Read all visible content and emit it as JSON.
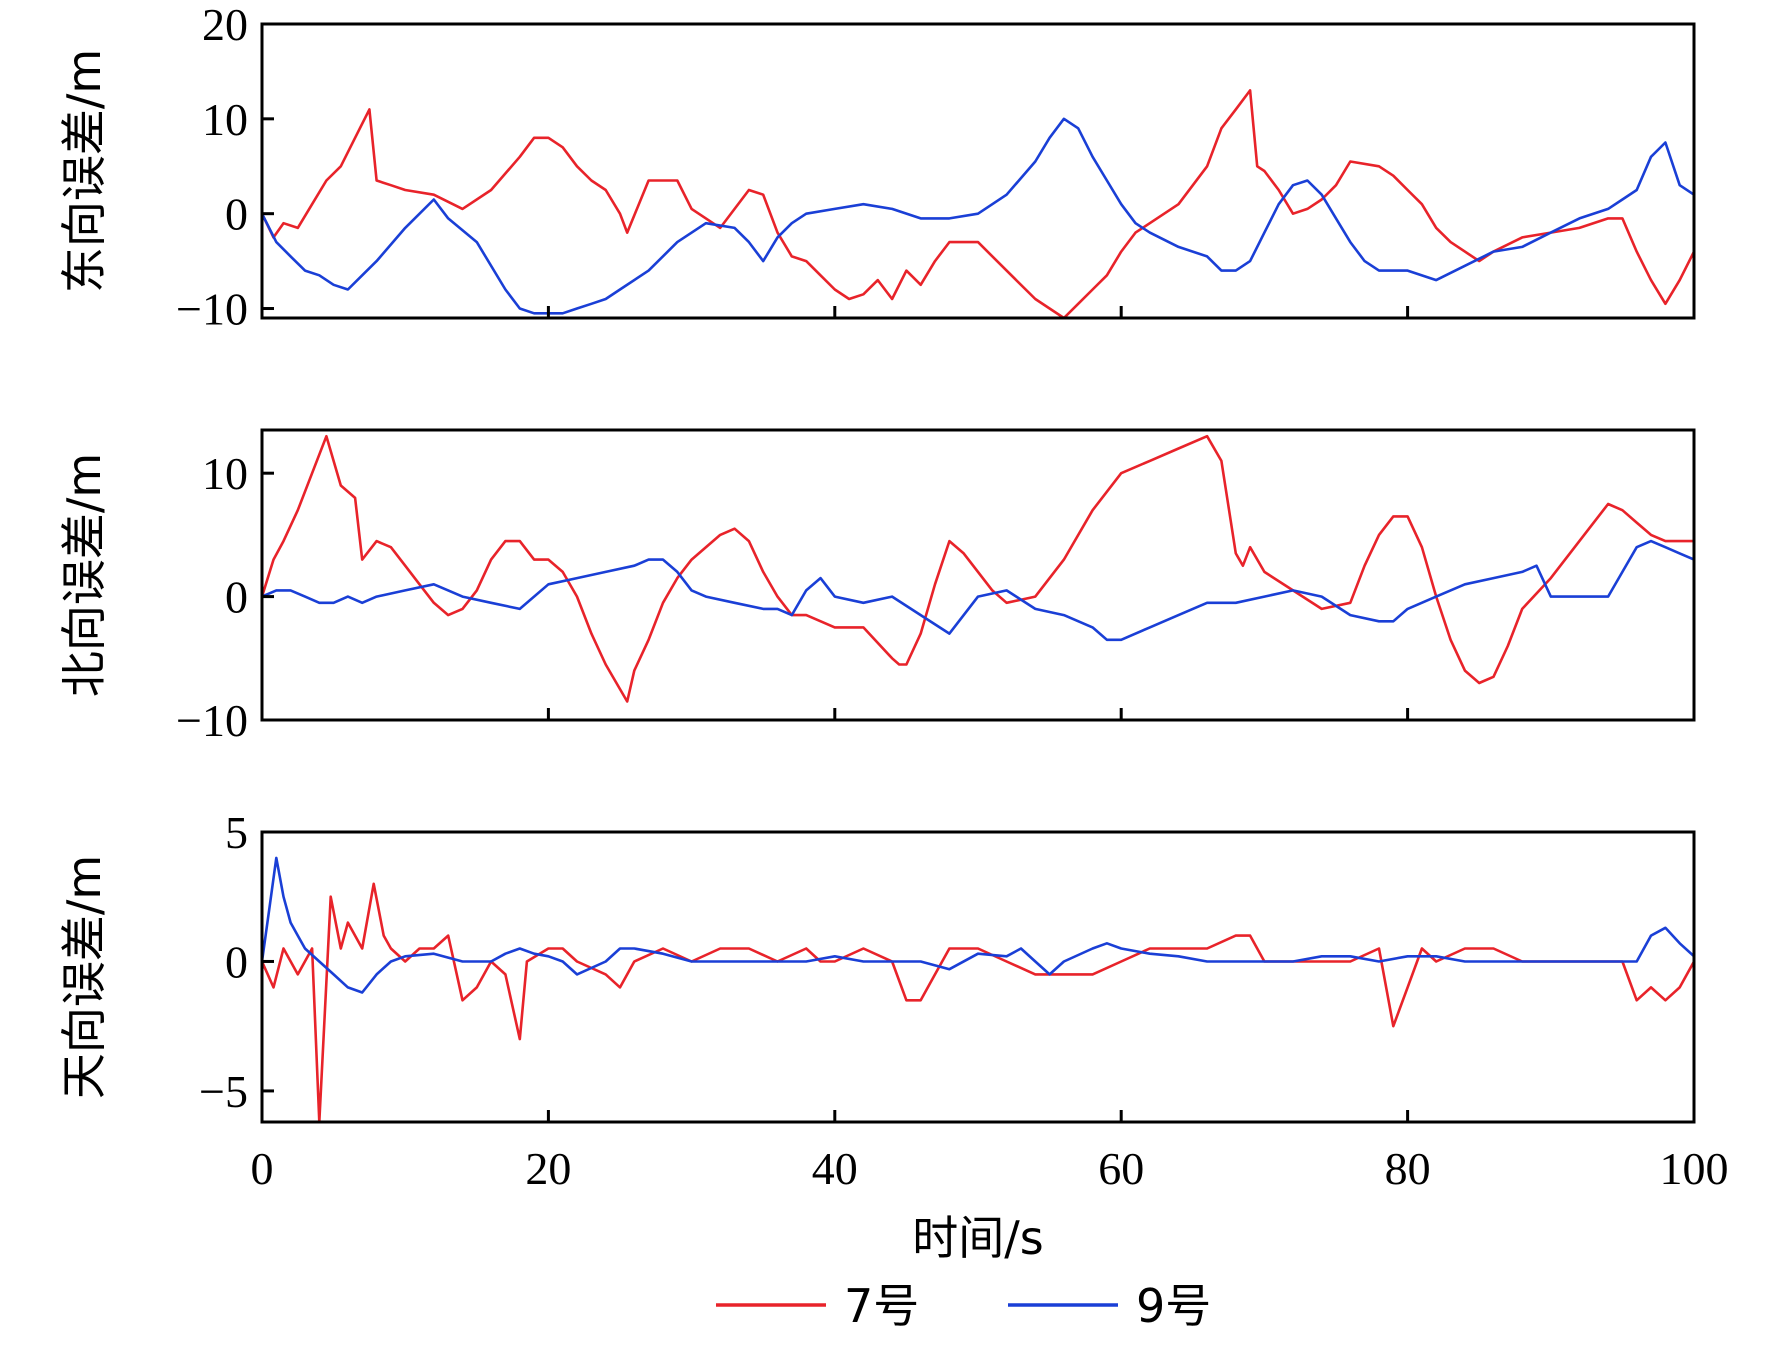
{
  "chart_data": {
    "type": "line",
    "xlabel": "时间/s",
    "xlim": [
      0,
      100
    ],
    "xticks": [
      0,
      20,
      40,
      60,
      80,
      100
    ],
    "legend": {
      "position": "bottom-center",
      "entries": [
        {
          "name": "7号",
          "color": "#e8232a"
        },
        {
          "name": "9号",
          "color": "#1a3fd6"
        }
      ]
    },
    "panels": [
      {
        "ylabel": "东向误差/m",
        "ylim": [
          -11,
          20
        ],
        "yticks": [
          -10,
          0,
          10,
          20
        ],
        "series": [
          {
            "name": "7号",
            "color": "#e8232a",
            "x": [
              0,
              0.8,
              1.5,
              2.5,
              3.5,
              4.5,
              5.5,
              6.5,
              7.5,
              8,
              9,
              10,
              12,
              14,
              16,
              18,
              19,
              20,
              21,
              22,
              23,
              24,
              25,
              25.5,
              27,
              29,
              30,
              32,
              34,
              35,
              36,
              37,
              38,
              39,
              40,
              41,
              42,
              43,
              44,
              45,
              46,
              47,
              48,
              50,
              52,
              54,
              55,
              56,
              57,
              58,
              59,
              60,
              61,
              62,
              64,
              66,
              67,
              68,
              69,
              69.5,
              70,
              71,
              72,
              73,
              74,
              75,
              76,
              78,
              79,
              80,
              81,
              82,
              83,
              84,
              85,
              86,
              88,
              90,
              92,
              94,
              95,
              96,
              97,
              98,
              99,
              100
            ],
            "y": [
              0,
              -2.5,
              -1,
              -1.5,
              1,
              3.5,
              5,
              8,
              11,
              3.5,
              3,
              2.5,
              2,
              0.5,
              2.5,
              6,
              8,
              8,
              7,
              5,
              3.5,
              2.5,
              0,
              -2,
              3.5,
              3.5,
              0.5,
              -1.5,
              2.5,
              2,
              -2,
              -4.5,
              -5,
              -6.5,
              -8,
              -9,
              -8.5,
              -7,
              -9,
              -6,
              -7.5,
              -5,
              -3,
              -3,
              -6,
              -9,
              -10,
              -11,
              -9.5,
              -8,
              -6.5,
              -4,
              -2,
              -1,
              1,
              5,
              9,
              11,
              13,
              5,
              4.5,
              2.5,
              0,
              0.5,
              1.5,
              3,
              5.5,
              5,
              4,
              2.5,
              1,
              -1.5,
              -3,
              -4,
              -5,
              -4,
              -2.5,
              -2,
              -1.5,
              -0.5,
              -0.5,
              -4,
              -7,
              -9.5,
              -7,
              -4
            ]
          },
          {
            "name": "9号",
            "color": "#1a3fd6",
            "x": [
              0,
              1,
              2,
              3,
              4,
              5,
              6,
              7,
              8,
              10,
              12,
              13,
              15,
              17,
              18,
              19,
              20,
              21,
              22,
              23,
              24,
              25,
              27,
              29,
              31,
              33,
              34,
              35,
              36,
              37,
              38,
              40,
              42,
              44,
              46,
              48,
              50,
              52,
              54,
              55,
              56,
              57,
              58,
              59,
              60,
              61,
              62,
              64,
              66,
              67,
              68,
              69,
              70,
              71,
              72,
              73,
              74,
              75,
              76,
              77,
              78,
              80,
              82,
              84,
              86,
              88,
              90,
              92,
              94,
              95,
              96,
              97,
              98,
              99,
              100
            ],
            "y": [
              0,
              -3,
              -4.5,
              -6,
              -6.5,
              -7.5,
              -8,
              -6.5,
              -5,
              -1.5,
              1.5,
              -0.5,
              -3,
              -8,
              -10,
              -10.5,
              -10.5,
              -10.5,
              -10,
              -9.5,
              -9,
              -8,
              -6,
              -3,
              -1,
              -1.5,
              -3,
              -5,
              -2.5,
              -1,
              0,
              0.5,
              1,
              0.5,
              -0.5,
              -0.5,
              0,
              2,
              5.5,
              8,
              10,
              9,
              6,
              3.5,
              1,
              -1,
              -2,
              -3.5,
              -4.5,
              -6,
              -6,
              -5,
              -2,
              1,
              3,
              3.5,
              2,
              -0.5,
              -3,
              -5,
              -6,
              -6,
              -7,
              -5.5,
              -4,
              -3.5,
              -2,
              -0.5,
              0.5,
              1.5,
              2.5,
              6,
              7.5,
              3,
              2
            ]
          }
        ]
      },
      {
        "ylabel": "北向误差/m",
        "ylim": [
          -10,
          13.5
        ],
        "yticks": [
          -10,
          0,
          10
        ],
        "series": [
          {
            "name": "7号",
            "color": "#e8232a",
            "x": [
              0,
              0.8,
              1.5,
              2.5,
              3.5,
              4.5,
              5.5,
              6.5,
              7,
              8,
              9,
              10,
              11,
              12,
              13,
              14,
              15,
              16,
              17,
              18,
              19,
              20,
              21,
              22,
              23,
              24,
              25,
              25.5,
              26,
              27,
              28,
              29,
              30,
              32,
              33,
              34,
              35,
              36,
              37,
              38,
              40,
              42,
              44,
              44.5,
              45,
              46,
              47,
              48,
              49,
              50,
              51,
              52,
              54,
              56,
              58,
              60,
              62,
              64,
              66,
              67,
              68,
              68.5,
              69,
              70,
              72,
              74,
              76,
              77,
              78,
              79,
              80,
              81,
              82,
              83,
              84,
              85,
              86,
              87,
              88,
              90,
              92,
              94,
              95,
              96,
              97,
              98,
              99,
              100
            ],
            "y": [
              0,
              3,
              4.5,
              7,
              10,
              13,
              9,
              8,
              3,
              4.5,
              4,
              2.5,
              1,
              -0.5,
              -1.5,
              -1,
              0.5,
              3,
              4.5,
              4.5,
              3,
              3,
              2,
              0,
              -3,
              -5.5,
              -7.5,
              -8.5,
              -6,
              -3.5,
              -0.5,
              1.5,
              3,
              5,
              5.5,
              4.5,
              2,
              0,
              -1.5,
              -1.5,
              -2.5,
              -2.5,
              -5,
              -5.5,
              -5.5,
              -3,
              1,
              4.5,
              3.5,
              2,
              0.5,
              -0.5,
              0,
              3,
              7,
              10,
              11,
              12,
              13,
              11,
              3.5,
              2.5,
              4,
              2,
              0.5,
              -1,
              -0.5,
              2.5,
              5,
              6.5,
              6.5,
              4,
              0,
              -3.5,
              -6,
              -7,
              -6.5,
              -4,
              -1,
              1.5,
              4.5,
              7.5,
              7,
              6,
              5,
              4.5,
              4.5,
              4.5
            ]
          },
          {
            "name": "9号",
            "color": "#1a3fd6",
            "x": [
              0,
              1,
              2,
              3,
              4,
              5,
              6,
              7,
              8,
              10,
              12,
              13,
              14,
              16,
              18,
              20,
              22,
              24,
              26,
              27,
              28,
              29,
              30,
              31,
              33,
              35,
              36,
              37,
              38,
              39,
              40,
              42,
              44,
              46,
              48,
              50,
              52,
              54,
              56,
              58,
              59,
              60,
              62,
              64,
              66,
              68,
              70,
              72,
              74,
              76,
              78,
              79,
              80,
              82,
              84,
              86,
              88,
              89,
              90,
              92,
              94,
              95,
              96,
              97,
              98,
              99,
              100
            ],
            "y": [
              0,
              0.5,
              0.5,
              0,
              -0.5,
              -0.5,
              0,
              -0.5,
              0,
              0.5,
              1,
              0.5,
              0,
              -0.5,
              -1,
              1,
              1.5,
              2,
              2.5,
              3,
              3,
              2,
              0.5,
              0,
              -0.5,
              -1,
              -1,
              -1.5,
              0.5,
              1.5,
              0,
              -0.5,
              0,
              -1.5,
              -3,
              0,
              0.5,
              -1,
              -1.5,
              -2.5,
              -3.5,
              -3.5,
              -2.5,
              -1.5,
              -0.5,
              -0.5,
              0,
              0.5,
              0,
              -1.5,
              -2,
              -2,
              -1,
              0,
              1,
              1.5,
              2,
              2.5,
              0,
              0,
              0,
              2,
              4,
              4.5,
              4,
              3.5,
              3
            ]
          }
        ]
      },
      {
        "ylabel": "天向误差/m",
        "ylim": [
          -6.2,
          5
        ],
        "yticks": [
          -5,
          0,
          5
        ],
        "series": [
          {
            "name": "7号",
            "color": "#e8232a",
            "x": [
              0,
              0.8,
              1.5,
              2.5,
              3.5,
              4,
              4.8,
              5.5,
              6,
              7,
              7.8,
              8.5,
              9,
              10,
              11,
              12,
              13,
              14,
              15,
              16,
              17,
              18,
              18.5,
              20,
              21,
              22,
              24,
              25,
              26,
              28,
              30,
              32,
              34,
              36,
              38,
              39,
              40,
              42,
              44,
              45,
              46,
              47,
              48,
              49,
              50,
              52,
              54,
              56,
              58,
              60,
              62,
              64,
              66,
              68,
              69,
              70,
              72,
              74,
              76,
              78,
              79,
              80,
              81,
              82,
              84,
              86,
              88,
              90,
              92,
              94,
              95,
              96,
              97,
              98,
              99,
              100
            ],
            "y": [
              0,
              -1,
              0.5,
              -0.5,
              0.5,
              -6.2,
              2.5,
              0.5,
              1.5,
              0.5,
              3,
              1,
              0.5,
              0,
              0.5,
              0.5,
              1,
              -1.5,
              -1,
              0,
              -0.5,
              -3,
              0,
              0.5,
              0.5,
              0,
              -0.5,
              -1,
              0,
              0.5,
              0,
              0.5,
              0.5,
              0,
              0.5,
              0,
              0,
              0.5,
              0,
              -1.5,
              -1.5,
              -0.5,
              0.5,
              0.5,
              0.5,
              0,
              -0.5,
              -0.5,
              -0.5,
              0,
              0.5,
              0.5,
              0.5,
              1,
              1,
              0,
              0,
              0,
              0,
              0.5,
              -2.5,
              -1,
              0.5,
              0,
              0.5,
              0.5,
              0,
              0,
              0,
              0,
              0,
              -1.5,
              -1,
              -1.5,
              -1,
              0
            ]
          },
          {
            "name": "9号",
            "color": "#1a3fd6",
            "x": [
              0,
              0.5,
              1,
              1.5,
              2,
              2.5,
              3,
              4,
              5,
              6,
              7,
              8,
              9,
              10,
              12,
              14,
              16,
              17,
              18,
              19,
              20,
              21,
              22,
              24,
              25,
              26,
              28,
              30,
              32,
              34,
              36,
              38,
              40,
              42,
              44,
              46,
              48,
              50,
              52,
              53,
              54,
              55,
              56,
              58,
              59,
              60,
              62,
              64,
              66,
              68,
              70,
              72,
              74,
              76,
              78,
              80,
              82,
              84,
              86,
              88,
              90,
              92,
              94,
              95,
              96,
              97,
              98,
              99,
              100
            ],
            "y": [
              0,
              2,
              4,
              2.5,
              1.5,
              1,
              0.5,
              0,
              -0.5,
              -1,
              -1.2,
              -0.5,
              0,
              0.2,
              0.3,
              0,
              0,
              0.3,
              0.5,
              0.3,
              0.2,
              0,
              -0.5,
              0,
              0.5,
              0.5,
              0.3,
              0,
              0,
              0,
              0,
              0,
              0.2,
              0,
              0,
              0,
              -0.3,
              0.3,
              0.2,
              0.5,
              0,
              -0.5,
              0,
              0.5,
              0.7,
              0.5,
              0.3,
              0.2,
              0,
              0,
              0,
              0,
              0.2,
              0.2,
              0,
              0.2,
              0.2,
              0,
              0,
              0,
              0,
              0,
              0,
              0,
              0,
              1,
              1.3,
              0.7,
              0.2
            ]
          }
        ]
      }
    ]
  }
}
